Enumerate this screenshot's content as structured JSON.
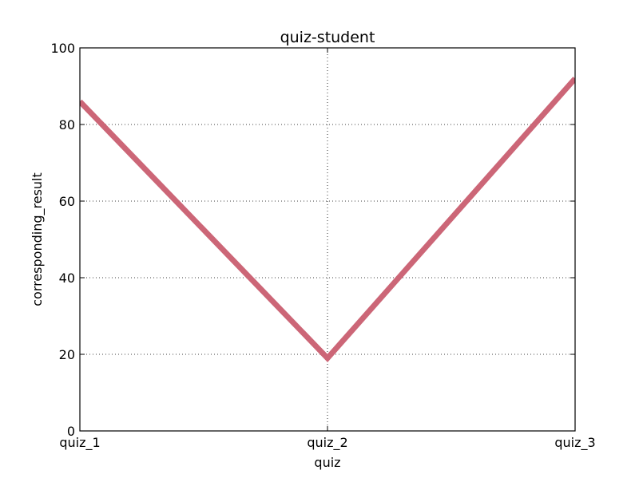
{
  "chart_data": {
    "type": "line",
    "title": "quiz-student",
    "xlabel": "quiz",
    "ylabel": "corresponding_result",
    "categories": [
      "quiz_1",
      "quiz_2",
      "quiz_3"
    ],
    "series": [
      {
        "values": [
          86,
          19,
          92
        ],
        "color": "#cc6677"
      }
    ],
    "ylim": [
      0,
      100
    ],
    "yticks": [
      0,
      20,
      40,
      60,
      80,
      100
    ],
    "grid": true,
    "legend": "none"
  }
}
